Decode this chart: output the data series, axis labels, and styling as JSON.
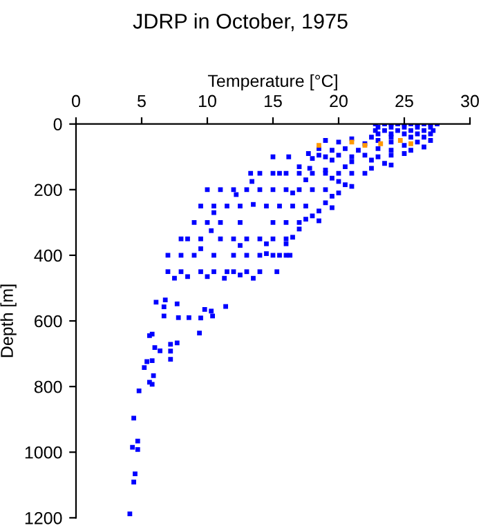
{
  "chart_data": {
    "type": "scatter",
    "title": "JDRP in October, 1975",
    "xlabel": "Temperature [°C]",
    "ylabel": "Depth [m]",
    "xlim": [
      0,
      30
    ],
    "xticks": [
      0,
      5,
      10,
      15,
      20,
      25,
      30
    ],
    "ylim": [
      1200,
      0
    ],
    "yticks": [
      0,
      200,
      400,
      600,
      800,
      1000,
      1200
    ],
    "grid": false,
    "legend": false,
    "marker": "square",
    "series": [
      {
        "color": "#0000ff",
        "x": [
          22.8,
          23.5,
          24,
          24.5,
          25,
          25.5,
          26,
          26.5,
          27,
          27.5,
          23,
          24,
          25,
          26,
          27,
          22.8,
          23.5,
          24.5,
          25.5,
          26.5,
          27.2,
          23,
          24,
          25,
          26,
          27,
          22.5,
          24,
          25.5,
          26.5,
          21,
          23,
          24,
          26,
          27,
          19,
          20,
          22,
          25,
          26.5,
          18.5,
          19.5,
          20.5,
          21.5,
          23,
          24,
          25.5,
          17.7,
          18.5,
          19,
          20,
          21,
          22,
          23,
          24,
          25,
          18,
          19.5,
          21,
          22.5,
          23.5,
          20.5,
          22.5,
          24,
          15,
          16.2,
          17,
          17.8,
          19,
          13.3,
          14,
          15,
          15.5,
          16,
          17,
          18,
          19,
          20,
          21,
          22,
          13.4,
          17.5,
          19.5,
          20,
          20.5,
          21,
          10,
          11,
          12,
          13,
          14,
          15,
          16,
          17,
          18,
          19,
          19.5,
          20,
          12.2,
          16.5,
          9.5,
          10.5,
          11.5,
          12.5,
          13.5,
          14.5,
          15.5,
          16.5,
          17.5,
          19,
          19.5,
          18.5,
          18,
          10.5,
          9,
          10,
          11,
          12.5,
          15,
          16,
          17,
          17.5,
          18.5,
          17,
          10.3,
          8,
          8.5,
          9.5,
          11,
          12,
          13,
          14,
          15,
          16,
          16.5,
          9.5,
          12.5,
          14.5,
          16,
          7,
          8,
          9,
          10.5,
          12,
          13,
          14,
          14.5,
          15,
          15.5,
          16,
          16.3,
          7,
          8,
          9.5,
          10.5,
          11.5,
          12,
          13,
          14,
          15.3,
          7.5,
          8.5,
          10,
          11.3,
          13.5,
          12.5,
          6.1,
          6.7,
          6.8,
          7.7,
          6.7,
          7.8,
          8.6,
          9.4,
          9.5,
          9.8,
          10.3,
          10.4,
          11.4,
          5.6,
          5.8,
          6.0,
          6.4,
          7.2,
          7.7,
          7.2,
          7.2,
          5.4,
          5.2,
          5.8,
          5.9,
          5.6,
          5.8,
          4.8,
          4.4,
          4.3,
          4.7,
          4.7,
          4.5,
          4.4,
          4.1
        ],
        "values": [
          0,
          0,
          0,
          0,
          0,
          0,
          0,
          0,
          0,
          0,
          10,
          10,
          10,
          10,
          10,
          20,
          20,
          20,
          20,
          20,
          20,
          30,
          30,
          30,
          30,
          30,
          40,
          40,
          40,
          40,
          45,
          50,
          55,
          55,
          50,
          50,
          55,
          60,
          65,
          70,
          75,
          80,
          75,
          80,
          75,
          80,
          80,
          90,
          95,
          100,
          95,
          100,
          95,
          100,
          95,
          90,
          105,
          110,
          115,
          110,
          120,
          130,
          135,
          125,
          100,
          100,
          130,
          135,
          140,
          150,
          150,
          150,
          150,
          150,
          150,
          150,
          150,
          150,
          150,
          150,
          175,
          170,
          165,
          175,
          185,
          190,
          200,
          200,
          200,
          200,
          200,
          200,
          200,
          200,
          200,
          200,
          220,
          210,
          215,
          210,
          250,
          250,
          250,
          250,
          245,
          250,
          250,
          250,
          250,
          240,
          255,
          265,
          280,
          270,
          300,
          300,
          300,
          300,
          300,
          300,
          300,
          290,
          295,
          320,
          325,
          350,
          350,
          350,
          350,
          350,
          350,
          350,
          350,
          350,
          345,
          380,
          370,
          365,
          365,
          400,
          400,
          400,
          400,
          400,
          400,
          400,
          395,
          400,
          400,
          400,
          400,
          450,
          450,
          450,
          450,
          450,
          450,
          450,
          450,
          450,
          470,
          465,
          465,
          470,
          470,
          460,
          543,
          557,
          536,
          548,
          585,
          590,
          590,
          637,
          591,
          565,
          570,
          585,
          556,
          645,
          640,
          681,
          691,
          671,
          667,
          692,
          717,
          724,
          742,
          721,
          767,
          787,
          793,
          813,
          896,
          985,
          966,
          992,
          1066,
          1091,
          1188
        ]
      },
      {
        "color": "#ff9900",
        "x": [
          18.5,
          21,
          22,
          23.2,
          24.7,
          25.5
        ],
        "values": [
          65,
          55,
          65,
          60,
          50,
          60
        ]
      }
    ]
  }
}
